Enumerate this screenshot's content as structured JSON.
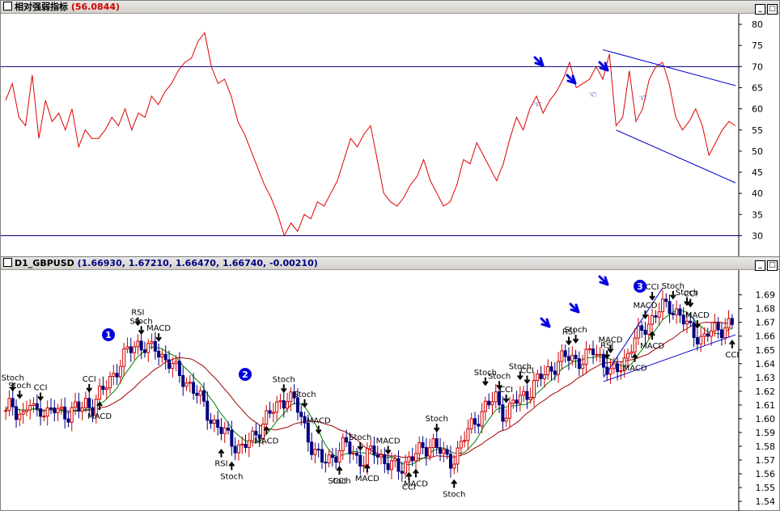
{
  "top_window": {
    "title": "相对强弱指标",
    "value": "(56.0844)",
    "buttons": [
      "_",
      "□"
    ]
  },
  "bottom_window": {
    "title": "D1_GBPUSD",
    "quote": "(1.66930, 1.67210, 1.66470, 1.66740, -0.00210)",
    "buttons": [
      "_",
      "□"
    ]
  },
  "colors": {
    "rsi_line": "#e00000",
    "level_line": "#000080",
    "trend_line": "#0000cc",
    "up_candle": "#d00000",
    "down_candle": "#000080",
    "ma_fast": "#008000",
    "ma_slow": "#a00000",
    "arrow_blue": "#0000dd"
  },
  "chart_data": [
    {
      "type": "line",
      "name": "RSI panel",
      "y_ticks": [
        "30",
        "35",
        "40",
        "45",
        "50",
        "55",
        "60",
        "65",
        "70",
        "75",
        "80"
      ],
      "ylim": [
        25.5,
        82.5
      ],
      "levels": [
        70,
        30
      ],
      "series": [
        {
          "values": [
            62,
            66,
            58,
            56,
            68,
            53,
            62,
            57,
            59,
            55,
            60,
            51,
            55,
            53,
            53,
            55,
            58,
            56,
            60,
            55,
            59,
            58,
            63,
            61,
            64,
            66,
            69,
            71,
            72,
            76,
            78,
            70,
            66,
            67,
            63,
            57,
            54,
            50,
            46,
            42,
            39,
            35,
            30,
            33,
            31,
            35,
            34,
            38,
            37,
            40,
            43,
            48,
            53,
            51,
            54,
            56,
            48,
            40,
            38,
            37,
            39,
            42,
            44,
            48,
            43,
            40,
            37,
            38,
            42,
            48,
            47,
            52,
            49,
            46,
            43,
            47,
            53,
            58,
            55,
            60,
            63,
            59,
            62,
            64,
            67,
            71,
            65,
            66,
            67,
            70,
            67,
            73,
            56,
            58,
            69,
            57,
            60,
            67,
            70,
            71,
            66,
            58,
            55,
            57,
            60,
            56,
            49,
            52,
            55,
            57,
            56
          ],
          "stroke": "rsi_line"
        }
      ],
      "annotations": {
        "blue_arrows": 3,
        "hand_icons": 3,
        "channel": "descending channel"
      }
    },
    {
      "type": "candlestick",
      "name": "D1_GBPUSD",
      "y_ticks": [
        "1.54",
        "1.55",
        "1.56",
        "1.57",
        "1.58",
        "1.59",
        "1.60",
        "1.61",
        "1.62",
        "1.63",
        "1.64",
        "1.65",
        "1.66",
        "1.67",
        "1.68",
        "1.69"
      ],
      "ylim": [
        1.533,
        1.708
      ],
      "close": [
        1.603,
        1.612,
        1.605,
        1.602,
        1.611,
        1.604,
        1.609,
        1.603,
        1.607,
        1.604,
        1.606,
        1.603,
        1.608,
        1.606,
        1.612,
        1.609,
        1.616,
        1.621,
        1.628,
        1.635,
        1.641,
        1.648,
        1.652,
        1.655,
        1.653,
        1.649,
        1.651,
        1.646,
        1.643,
        1.638,
        1.631,
        1.628,
        1.625,
        1.619,
        1.612,
        1.604,
        1.598,
        1.593,
        1.589,
        1.584,
        1.581,
        1.579,
        1.582,
        1.586,
        1.593,
        1.601,
        1.604,
        1.608,
        1.613,
        1.618,
        1.612,
        1.603,
        1.592,
        1.581,
        1.573,
        1.568,
        1.571,
        1.574,
        1.578,
        1.581,
        1.576,
        1.572,
        1.569,
        1.574,
        1.577,
        1.573,
        1.568,
        1.566,
        1.562,
        1.567,
        1.572,
        1.574,
        1.576,
        1.579,
        1.584,
        1.579,
        1.572,
        1.568,
        1.574,
        1.582,
        1.589,
        1.596,
        1.602,
        1.608,
        1.611,
        1.615,
        1.606,
        1.603,
        1.611,
        1.614,
        1.618,
        1.621,
        1.626,
        1.631,
        1.635,
        1.638,
        1.641,
        1.644,
        1.646,
        1.643,
        1.641,
        1.645,
        1.651,
        1.646,
        1.638,
        1.631,
        1.636,
        1.641,
        1.648,
        1.656,
        1.662,
        1.668,
        1.672,
        1.677,
        1.681,
        1.683,
        1.679,
        1.674,
        1.668,
        1.664,
        1.661,
        1.657,
        1.662,
        1.665,
        1.666,
        1.668,
        1.667
      ],
      "series_names": [],
      "labels": [
        {
          "text": "Stoch",
          "i": 2,
          "side": "top"
        },
        {
          "text": "Stoch",
          "i": 4,
          "side": "top"
        },
        {
          "text": "CCI",
          "i": 10,
          "side": "top"
        },
        {
          "text": "CCI",
          "i": 24,
          "side": "top"
        },
        {
          "text": "MACD",
          "i": 27,
          "side": "bottom"
        },
        {
          "text": "RSI",
          "i": 38,
          "side": "top"
        },
        {
          "text": "Stoch",
          "i": 39,
          "side": "top"
        },
        {
          "text": "MACD",
          "i": 44,
          "side": "top"
        },
        {
          "text": "RSI",
          "i": 62,
          "side": "bottom"
        },
        {
          "text": "Stoch",
          "i": 65,
          "side": "bottom"
        },
        {
          "text": "Stoch",
          "i": 80,
          "side": "top"
        },
        {
          "text": "MACD",
          "i": 75,
          "side": "bottom"
        },
        {
          "text": "Stoch",
          "i": 86,
          "side": "top"
        },
        {
          "text": "MACD",
          "i": 90,
          "side": "top"
        },
        {
          "text": "Stoch",
          "i": 102,
          "side": "top"
        },
        {
          "text": "CCI",
          "i": 96,
          "side": "bottom"
        },
        {
          "text": "Stoch",
          "i": 96,
          "side": "bottom"
        },
        {
          "text": "MACD",
          "i": 104,
          "side": "bottom"
        },
        {
          "text": "MACD",
          "i": 110,
          "side": "top"
        },
        {
          "text": "MACD",
          "i": 118,
          "side": "bottom"
        },
        {
          "text": "CCI",
          "i": 116,
          "side": "bottom"
        },
        {
          "text": "Stoch",
          "i": 124,
          "side": "top"
        },
        {
          "text": "Stoch",
          "i": 129,
          "side": "bottom"
        },
        {
          "text": "Stoch",
          "i": 138,
          "side": "top"
        },
        {
          "text": "CCI",
          "i": 144,
          "side": "top"
        },
        {
          "text": "Stoch",
          "i": 142,
          "side": "top"
        },
        {
          "text": "Stoch",
          "i": 148,
          "side": "top"
        },
        {
          "text": "CCI",
          "i": 150,
          "side": "top"
        },
        {
          "text": "RSI",
          "i": 162,
          "side": "top"
        },
        {
          "text": "Stoch",
          "i": 164,
          "side": "top"
        },
        {
          "text": "RSI",
          "i": 173,
          "side": "top"
        },
        {
          "text": "MACD",
          "i": 174,
          "side": "top"
        },
        {
          "text": "MACD",
          "i": 181,
          "side": "bottom"
        },
        {
          "text": "MACD",
          "i": 186,
          "side": "bottom"
        },
        {
          "text": "MACD",
          "i": 184,
          "side": "top"
        },
        {
          "text": "CCI",
          "i": 186,
          "side": "top"
        },
        {
          "text": "Stoch",
          "i": 192,
          "side": "top"
        },
        {
          "text": "Stoch",
          "i": 196,
          "side": "top"
        },
        {
          "text": "CCI",
          "i": 197,
          "side": "top"
        },
        {
          "text": "MACD",
          "i": 199,
          "side": "top"
        },
        {
          "text": "CCI",
          "i": 209,
          "side": "bottom"
        }
      ],
      "markers": [
        "1",
        "2",
        "3"
      ]
    }
  ]
}
